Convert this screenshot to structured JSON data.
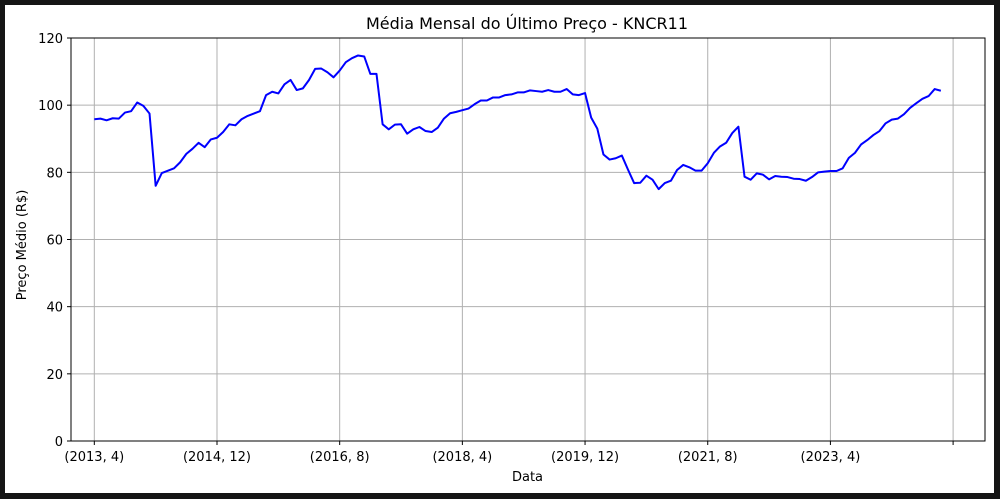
{
  "chart_data": {
    "type": "line",
    "title": "Média Mensal do Último Preço - KNCR11",
    "xlabel": "Data",
    "ylabel": "Preço Médio (R$)",
    "ylim": [
      0,
      120
    ],
    "yticks": [
      0,
      20,
      40,
      60,
      80,
      100,
      120
    ],
    "xticks": [
      {
        "label": "(2013, 4)",
        "index": 0
      },
      {
        "label": "(2014, 12)",
        "index": 20
      },
      {
        "label": "(2016, 8)",
        "index": 40
      },
      {
        "label": "(2018, 4)",
        "index": 60
      },
      {
        "label": "(2019, 12)",
        "index": 80
      },
      {
        "label": "(2021, 8)",
        "index": 100
      },
      {
        "label": "(2023, 4)",
        "index": 120
      },
      {
        "label": "",
        "index": 140
      }
    ],
    "grid": true,
    "legend": "none",
    "line_color": "#0000ff",
    "series": [
      {
        "values": [
          95.8,
          96.0,
          95.5,
          96.1,
          96.0,
          97.8,
          98.2,
          100.8,
          99.8,
          97.5,
          76.0,
          79.8,
          80.5,
          81.2,
          83.0,
          85.5,
          87.0,
          88.8,
          87.5,
          89.8,
          90.3,
          92.0,
          94.3,
          94.0,
          95.8,
          96.8,
          97.5,
          98.2,
          103.0,
          104.0,
          103.5,
          106.2,
          107.5,
          104.5,
          105.0,
          107.5,
          110.8,
          110.9,
          109.8,
          108.3,
          110.3,
          112.8,
          114.0,
          114.8,
          114.5,
          109.3,
          109.3,
          94.3,
          92.8,
          94.2,
          94.3,
          91.5,
          92.8,
          93.5,
          92.3,
          92.0,
          93.3,
          96.0,
          97.6,
          98.0,
          98.5,
          99.0,
          100.3,
          101.4,
          101.4,
          102.3,
          102.3,
          103.0,
          103.2,
          103.8,
          103.8,
          104.4,
          104.2,
          104.0,
          104.5,
          104.0,
          104.0,
          104.8,
          103.2,
          103.0,
          103.6,
          96.3,
          93.0,
          85.3,
          83.8,
          84.2,
          85.0,
          80.8,
          76.8,
          76.9,
          79.0,
          77.8,
          75.0,
          76.8,
          77.5,
          80.7,
          82.2,
          81.5,
          80.5,
          80.5,
          82.7,
          85.8,
          87.7,
          88.8,
          91.7,
          93.6,
          78.7,
          77.8,
          79.7,
          79.3,
          77.9,
          78.9,
          78.7,
          78.6,
          78.1,
          78.0,
          77.5,
          78.6,
          80.0,
          80.2,
          80.4,
          80.4,
          81.2,
          84.3,
          85.8,
          88.3,
          89.6,
          91.1,
          92.3,
          94.6,
          95.7,
          96.0,
          97.3,
          99.2,
          100.6,
          101.9,
          102.7,
          104.8,
          104.3
        ]
      }
    ]
  }
}
